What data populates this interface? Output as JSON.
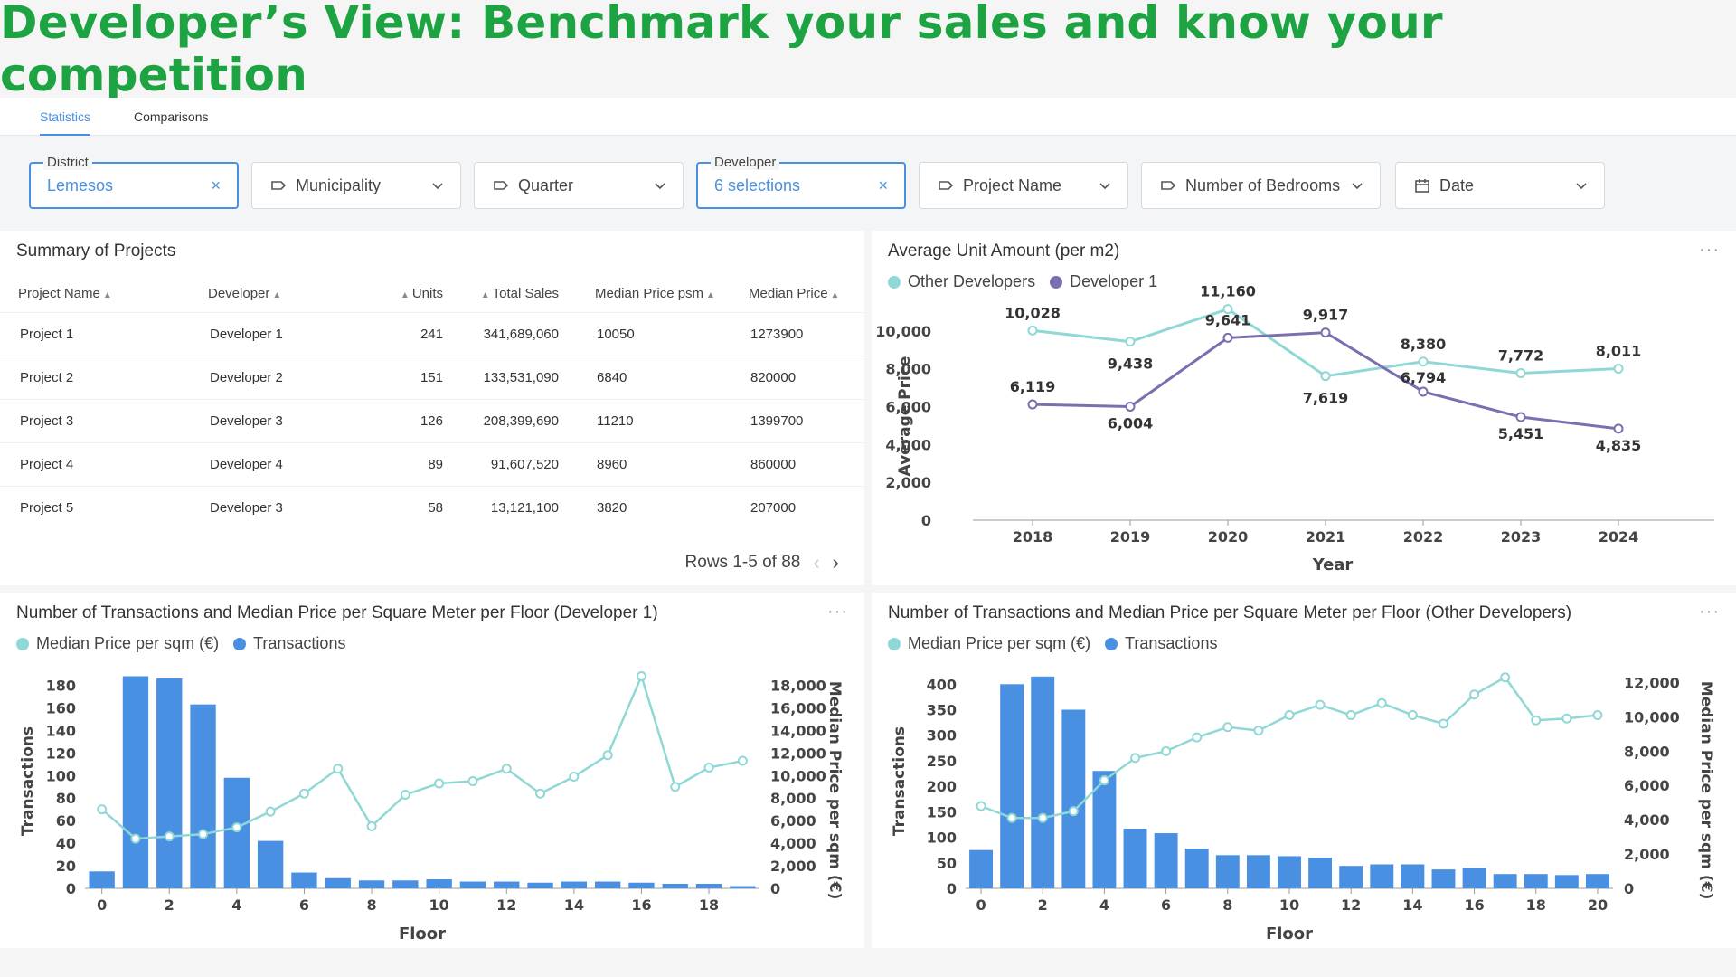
{
  "banner": {
    "title": "Developer’s View: Benchmark your sales and know your competition"
  },
  "tabs": [
    {
      "label": "Statistics",
      "active": true
    },
    {
      "label": "Comparisons",
      "active": false
    }
  ],
  "filters": {
    "district": {
      "label": "District",
      "value": "Lemesos",
      "clear": "×"
    },
    "municipality": {
      "placeholder": "Municipality"
    },
    "quarter": {
      "placeholder": "Quarter"
    },
    "developer": {
      "label": "Developer",
      "value": "6 selections",
      "clear": "×"
    },
    "project_name": {
      "placeholder": "Project Name"
    },
    "bedrooms": {
      "placeholder": "Number of Bedrooms"
    },
    "date": {
      "placeholder": "Date"
    }
  },
  "summary": {
    "title": "Summary of Projects",
    "columns": [
      "Project Name",
      "Developer",
      "Units",
      "Total Sales",
      "Median Price psm",
      "Median Price"
    ],
    "rows": [
      [
        "Project 1",
        "Developer 1",
        "241",
        "341,689,060",
        "10050",
        "1273900"
      ],
      [
        "Project 2",
        "Developer 2",
        "151",
        "133,531,090",
        "6840",
        "820000"
      ],
      [
        "Project 3",
        "Developer 3",
        "126",
        "208,399,690",
        "11210",
        "1399700"
      ],
      [
        "Project 4",
        "Developer 4",
        "89",
        "91,607,520",
        "8960",
        "860000"
      ],
      [
        "Project 5",
        "Developer 3",
        "58",
        "13,121,100",
        "3820",
        "207000"
      ]
    ],
    "pager": "Rows 1-5 of 88",
    "prev_icon": "‹",
    "next_icon": "›"
  },
  "colors": {
    "teal": "#8fd8d6",
    "purple": "#7b6fb0",
    "blue": "#4a90e2",
    "green": "#1ea343"
  },
  "chart_data": [
    {
      "type": "line",
      "title": "Average Unit Amount (per m2)",
      "x": [
        "2018",
        "2019",
        "2020",
        "2021",
        "2022",
        "2023",
        "2024"
      ],
      "series": [
        {
          "name": "Other Developers",
          "values": [
            10028,
            9438,
            11160,
            7619,
            8380,
            7772,
            8011
          ]
        },
        {
          "name": "Developer 1",
          "values": [
            6119,
            6004,
            9641,
            9917,
            6794,
            5451,
            4835
          ]
        }
      ],
      "xlabel": "Year",
      "ylabel": "Average Price",
      "ylim": [
        0,
        11000
      ],
      "yticks": [
        0,
        2000,
        4000,
        6000,
        8000,
        10000
      ],
      "ytick_labels": [
        "0",
        "2,000",
        "4,000",
        "6,000",
        "8,000",
        "10,000"
      ],
      "value_labels_teal": [
        "10,028",
        "9,438",
        "11,160",
        "7,619",
        "8,380",
        "7,772",
        "8,011"
      ],
      "value_labels_purple": [
        "6,119",
        "6,004",
        "9,641",
        "9,917",
        "6,794",
        "5,451",
        "4,835"
      ],
      "legend": "top-left"
    },
    {
      "type": "bar",
      "title": "Number of Transactions and Median Price per Square Meter per Floor (Developer 1)",
      "x": [
        0,
        1,
        2,
        3,
        4,
        5,
        6,
        7,
        8,
        9,
        10,
        11,
        12,
        13,
        14,
        15,
        16,
        17,
        18,
        19
      ],
      "xticks": [
        "0",
        "2",
        "4",
        "6",
        "8",
        "10",
        "12",
        "14",
        "16",
        "18"
      ],
      "series": [
        {
          "name": "Transactions",
          "type": "bar",
          "values": [
            15,
            188,
            186,
            163,
            98,
            42,
            14,
            9,
            7,
            7,
            8,
            6,
            6,
            5,
            6,
            6,
            5,
            4,
            4,
            2
          ]
        },
        {
          "name": "Median Price per sqm (€)",
          "type": "line",
          "values": [
            7000,
            4400,
            4600,
            4800,
            5400,
            6800,
            8400,
            10600,
            5500,
            8300,
            9300,
            9500,
            10600,
            8400,
            9900,
            11800,
            18800,
            9000,
            10700,
            11300
          ]
        }
      ],
      "xlabel": "Floor",
      "ylabel": "Transactions",
      "y2label": "Median Price per sqm (€)",
      "ylim": [
        0,
        190
      ],
      "yticks": [
        0,
        20,
        40,
        60,
        80,
        100,
        120,
        140,
        160,
        180
      ],
      "ytick_labels": [
        "0",
        "20",
        "40",
        "60",
        "80",
        "100",
        "120",
        "140",
        "160",
        "180"
      ],
      "y2lim": [
        0,
        19000
      ],
      "y2ticks": [
        0,
        2000,
        4000,
        6000,
        8000,
        10000,
        12000,
        14000,
        16000,
        18000
      ],
      "y2tick_labels": [
        "0",
        "2,000",
        "4,000",
        "6,000",
        "8,000",
        "10,000",
        "12,000",
        "14,000",
        "16,000",
        "18,000"
      ],
      "legend": "top-left"
    },
    {
      "type": "bar",
      "title": "Number of Transactions and Median Price per Square Meter per Floor (Other Developers)",
      "x": [
        0,
        1,
        2,
        3,
        4,
        5,
        6,
        7,
        8,
        9,
        10,
        11,
        12,
        13,
        14,
        15,
        16,
        17,
        18,
        19,
        20
      ],
      "xticks": [
        "0",
        "2",
        "4",
        "6",
        "8",
        "10",
        "12",
        "14",
        "16",
        "18",
        "20"
      ],
      "series": [
        {
          "name": "Transactions",
          "type": "bar",
          "values": [
            75,
            400,
            415,
            350,
            230,
            117,
            108,
            78,
            65,
            65,
            63,
            60,
            44,
            47,
            47,
            37,
            40,
            28,
            28,
            26,
            28
          ]
        },
        {
          "name": "Median Price per sqm (€)",
          "type": "line",
          "values": [
            4800,
            4100,
            4100,
            4500,
            6300,
            7600,
            8000,
            8800,
            9400,
            9200,
            10100,
            10700,
            10100,
            10800,
            10100,
            9600,
            11300,
            12300,
            9800,
            9900,
            10100
          ]
        }
      ],
      "xlabel": "Floor",
      "ylabel": "Transactions",
      "y2label": "Median Price per sqm (€)",
      "ylim": [
        0,
        420
      ],
      "yticks": [
        0,
        50,
        100,
        150,
        200,
        250,
        300,
        350,
        400
      ],
      "ytick_labels": [
        "0",
        "50",
        "100",
        "150",
        "200",
        "250",
        "300",
        "350",
        "400"
      ],
      "y2lim": [
        0,
        12500
      ],
      "y2ticks": [
        0,
        2000,
        4000,
        6000,
        8000,
        10000,
        12000
      ],
      "y2tick_labels": [
        "0",
        "2,000",
        "4,000",
        "6,000",
        "8,000",
        "10,000",
        "12,000"
      ],
      "legend": "top-left"
    }
  ],
  "menu_icon": "···"
}
